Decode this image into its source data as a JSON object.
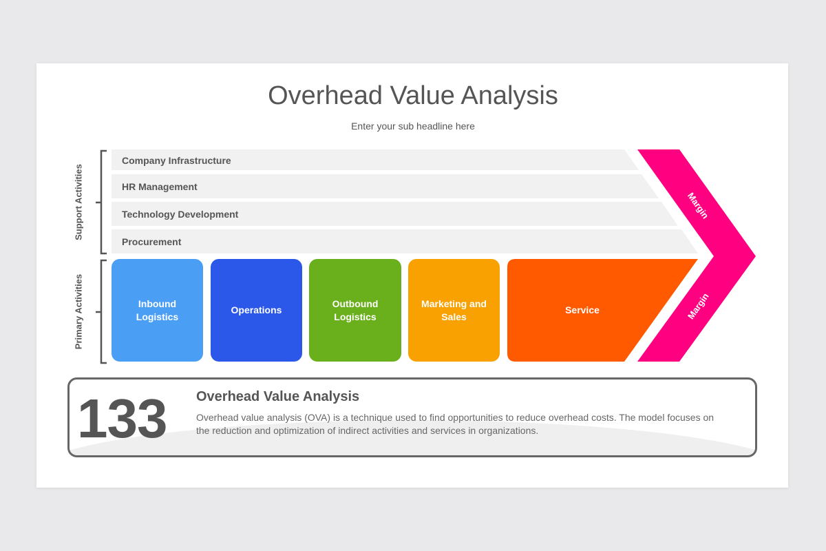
{
  "title": "Overhead Value Analysis",
  "subtitle": "Enter your sub headline here",
  "support": {
    "label": "Support Activities",
    "items": [
      "Company Infrastructure",
      "HR Management",
      "Technology Development",
      "Procurement"
    ]
  },
  "primary": {
    "label": "Primary Activities",
    "items": [
      {
        "label": "Inbound Logistics",
        "color": "#4a9ff5"
      },
      {
        "label": "Operations",
        "color": "#2b58e8"
      },
      {
        "label": "Outbound Logistics",
        "color": "#6aaf1c"
      },
      {
        "label": "Marketing and Sales",
        "color": "#f9a100"
      },
      {
        "label": "Service",
        "color": "#ff5a00"
      }
    ]
  },
  "margin": {
    "top_label": "Margin",
    "bottom_label": "Margin",
    "color": "#ff0080"
  },
  "panel": {
    "number": "133",
    "title": "Overhead Value Analysis",
    "description": "Overhead value analysis (OVA) is a technique used to find opportunities to reduce overhead costs. The model focuses on the reduction and optimization of indirect activities and services in organizations."
  }
}
